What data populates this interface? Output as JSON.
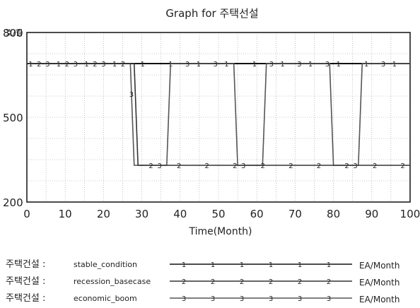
{
  "chart_data": {
    "type": "line",
    "title": "Graph for 주택선설",
    "ylabel": "호/월",
    "xlabel": "Time(Month)",
    "xlim": [
      0,
      100
    ],
    "ylim": [
      200,
      800
    ],
    "x_ticks": [
      0,
      10,
      20,
      30,
      40,
      50,
      60,
      70,
      80,
      90,
      100
    ],
    "y_ticks": [
      200,
      500,
      800
    ],
    "grid": true,
    "series": [
      {
        "name": "stable_condition",
        "legend_prefix": "주택건설 :",
        "unit": "EA/Month",
        "marker": "1",
        "color": "#111111",
        "x": [
          0,
          100
        ],
        "y": [
          690,
          690
        ]
      },
      {
        "name": "recession_basecase",
        "legend_prefix": "주택건설 :",
        "unit": "EA/Month",
        "marker": "2",
        "color": "#333333",
        "x": [
          0,
          28,
          29,
          100
        ],
        "y": [
          690,
          690,
          330,
          330
        ]
      },
      {
        "name": "economic_boom",
        "legend_prefix": "주택건설 :",
        "unit": "EA/Month",
        "marker": "3",
        "color": "#555555",
        "x": [
          0,
          27,
          28,
          36.5,
          37.5,
          54,
          55,
          61.5,
          62.5,
          79,
          80,
          86.5,
          87.5,
          100
        ],
        "y": [
          690,
          690,
          330,
          330,
          690,
          690,
          330,
          330,
          690,
          690,
          330,
          330,
          690,
          690
        ]
      }
    ]
  }
}
